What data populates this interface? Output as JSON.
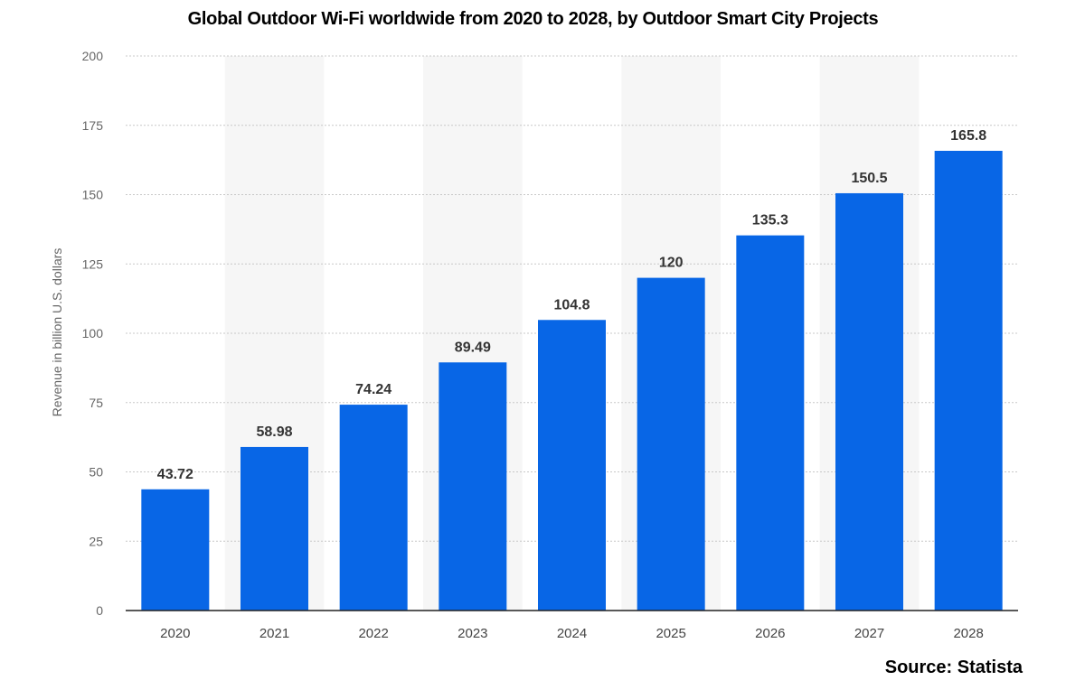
{
  "chart_data": {
    "type": "bar",
    "title": "Global Outdoor Wi-Fi worldwide from 2020 to 2028, by Outdoor Smart City Projects",
    "categories": [
      "2020",
      "2021",
      "2022",
      "2023",
      "2024",
      "2025",
      "2026",
      "2027",
      "2028"
    ],
    "values": [
      43.72,
      58.98,
      74.24,
      89.49,
      104.8,
      120,
      135.3,
      150.5,
      165.8
    ],
    "data_labels": [
      "43.72",
      "58.98",
      "74.24",
      "89.49",
      "104.8",
      "120",
      "135.3",
      "150.5",
      "165.8"
    ],
    "xlabel": "",
    "ylabel": "Revenue in billion U.S. dollars",
    "ylim": [
      0,
      200
    ],
    "yticks": [
      0,
      25,
      50,
      75,
      100,
      125,
      150,
      175,
      200
    ],
    "ytick_labels": [
      "0",
      "25",
      "50",
      "75",
      "100",
      "125",
      "150",
      "175",
      "200"
    ],
    "grid": true,
    "bar_color": "#0866e6"
  },
  "source": "Source: Statista"
}
